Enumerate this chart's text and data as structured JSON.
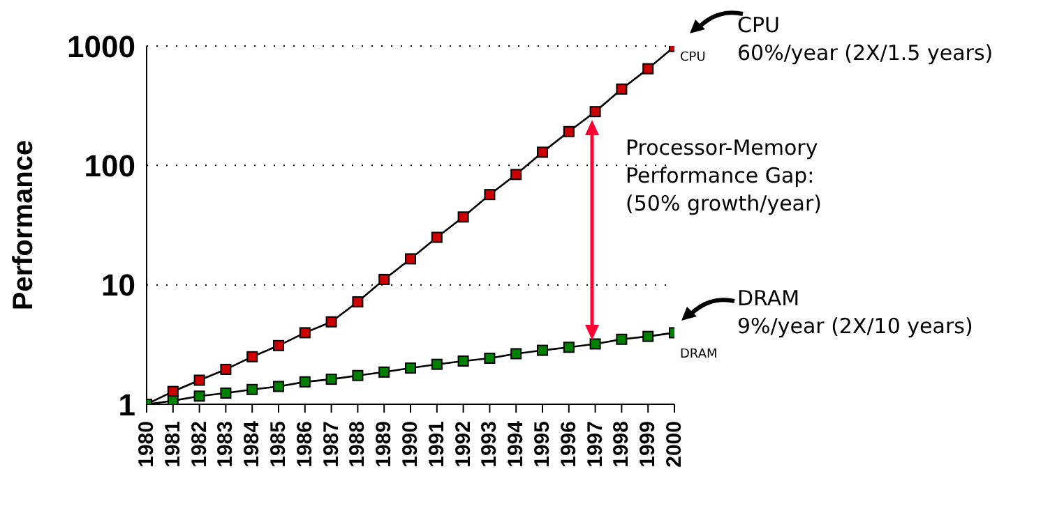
{
  "chart_data": {
    "type": "line",
    "ylabel": "Performance",
    "categories": [
      "1980",
      "1981",
      "1982",
      "1983",
      "1984",
      "1985",
      "1986",
      "1987",
      "1988",
      "1989",
      "1990",
      "1991",
      "1992",
      "1993",
      "1994",
      "1995",
      "1996",
      "1997",
      "1998",
      "1999",
      "2000"
    ],
    "series": [
      {
        "name": "CPU",
        "color": "#cc0000",
        "values": [
          1,
          1.28,
          1.59,
          1.96,
          2.5,
          3.1,
          3.97,
          4.9,
          7.2,
          11.1,
          16.5,
          25,
          37,
          57,
          84,
          129,
          192,
          282,
          436,
          645,
          990
        ]
      },
      {
        "name": "DRAM",
        "color": "#008000",
        "values": [
          1,
          1.07,
          1.17,
          1.24,
          1.33,
          1.41,
          1.54,
          1.62,
          1.74,
          1.86,
          2.01,
          2.16,
          2.3,
          2.43,
          2.65,
          2.83,
          3.0,
          3.2,
          3.5,
          3.7,
          3.97
        ]
      }
    ],
    "log": "y",
    "ylim": [
      1,
      1000
    ],
    "yticks": [
      1,
      10,
      100,
      1000
    ],
    "grid": "y",
    "marker": "square",
    "line_style": "solid",
    "legend": false,
    "annotations": [
      "CPU\n60%/year (2X/1.5 years)",
      "Processor-Memory\nPerformance Gap:\n(50% growth/year)",
      "DRAM\n9%/year (2X/10 years)"
    ]
  }
}
